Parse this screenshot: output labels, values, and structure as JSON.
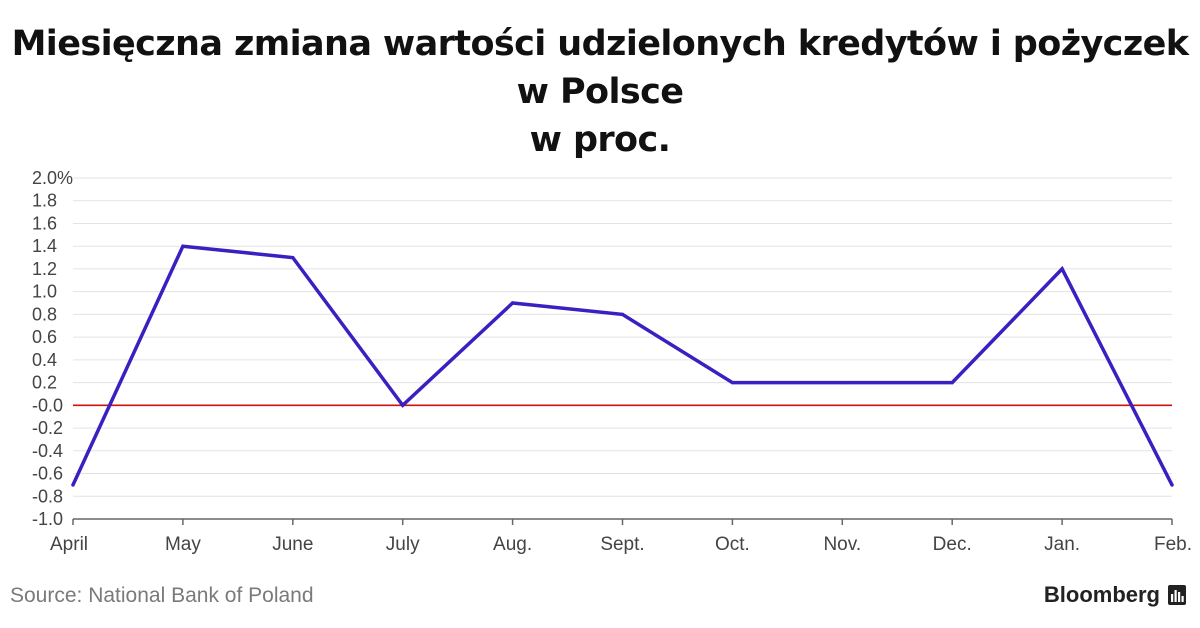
{
  "chart_data": {
    "type": "line",
    "title_line1": "Miesięczna zmiana wartości udzielonych kredytów i pożyczek  w Polsce",
    "title_line2": "w proc.",
    "categories": [
      "April",
      "May",
      "June",
      "July",
      "Aug.",
      "Sept.",
      "Oct.",
      "Nov.",
      "Dec.",
      "Jan.",
      "Feb."
    ],
    "series": [
      {
        "values": [
          -0.7,
          1.4,
          1.3,
          0.0,
          0.9,
          0.8,
          0.2,
          0.2,
          0.2,
          1.2,
          -0.7
        ]
      }
    ],
    "ylim": [
      -1.0,
      2.0
    ],
    "yticks": [
      "2.0%",
      "1.8",
      "1.6",
      "1.4",
      "1.2",
      "1.0",
      "0.8",
      "0.6",
      "0.4",
      "0.2",
      "-0.0",
      "-0.2",
      "-0.4",
      "-0.6",
      "-0.8",
      "-1.0"
    ],
    "grid": true,
    "zero_line": true,
    "line_color": "#3a1fc1",
    "zero_line_color": "#cc1111",
    "grid_color": "#e3e3e3"
  },
  "footer": {
    "source": "Source: National Bank of Poland",
    "brand": "Bloomberg"
  }
}
